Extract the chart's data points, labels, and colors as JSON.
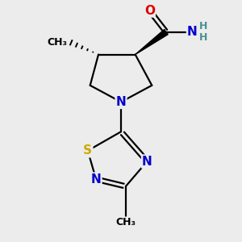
{
  "bg_color": "#ececec",
  "atom_colors": {
    "C": "#000000",
    "N": "#0000cc",
    "O": "#dd0000",
    "S": "#ccaa00",
    "H": "#4a9090"
  },
  "bond_color": "#000000",
  "bond_width": 1.6,
  "font_size_atoms": 11,
  "font_size_h": 9,
  "font_size_methyl": 9
}
